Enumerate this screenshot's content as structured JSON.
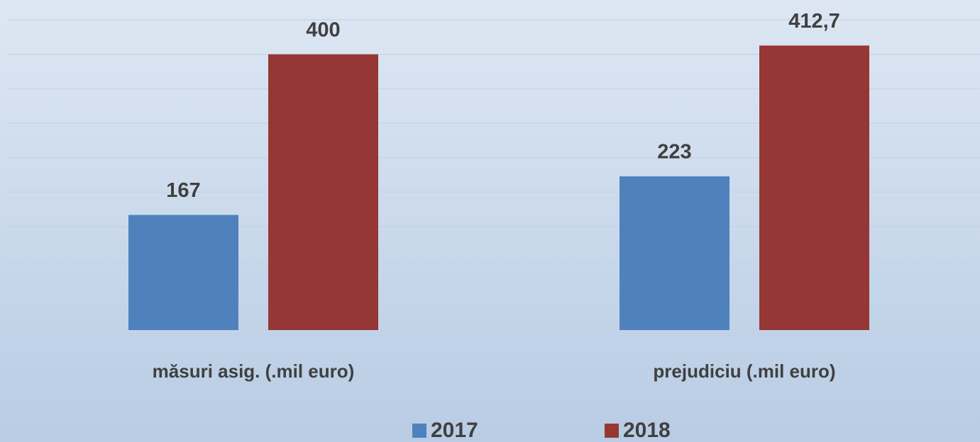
{
  "chart_data": {
    "type": "bar",
    "categories": [
      "măsuri asig. (.mil euro)",
      "prejudiciu (.mil euro)"
    ],
    "series": [
      {
        "name": "2017",
        "color": "#4f81bd",
        "values": [
          167,
          223
        ],
        "value_labels": [
          "167",
          "223"
        ]
      },
      {
        "name": "2018",
        "color": "#953735",
        "values": [
          400,
          412.7
        ],
        "value_labels": [
          "400",
          "412,7"
        ]
      }
    ],
    "ylim": [
      0,
      450
    ],
    "yticks": [
      0,
      50,
      100,
      150,
      200,
      250,
      300,
      350,
      400,
      450
    ],
    "grid": true,
    "legend": "bottom"
  }
}
